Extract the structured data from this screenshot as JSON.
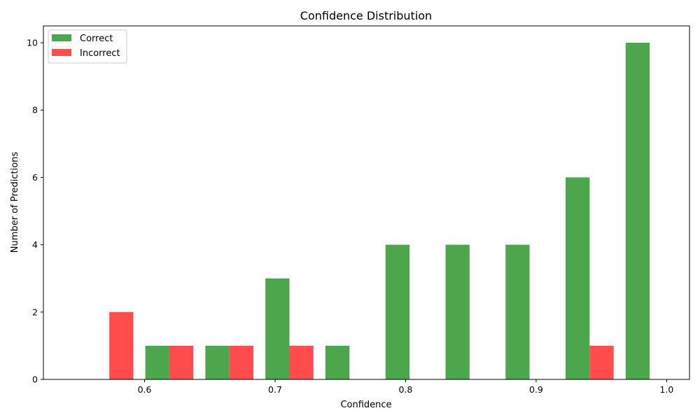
{
  "chart_data": {
    "type": "bar",
    "title": "Confidence Distribution",
    "xlabel": "Confidence",
    "ylabel": "Number of Predictions",
    "xlim": [
      0.5225,
      1.0175
    ],
    "ylim": [
      0,
      10.5
    ],
    "xticks": [
      0.6,
      0.7,
      0.8,
      0.9,
      1.0
    ],
    "xtick_labels": [
      "0.6",
      "0.7",
      "0.8",
      "0.9",
      "1.0"
    ],
    "yticks": [
      0,
      2,
      4,
      6,
      8,
      10
    ],
    "ytick_labels": [
      "0",
      "2",
      "4",
      "6",
      "8",
      "10"
    ],
    "bin_edges": [
      0.55,
      0.596,
      0.642,
      0.688,
      0.734,
      0.78,
      0.826,
      0.872,
      0.918,
      0.964,
      1.01
    ],
    "series": [
      {
        "name": "Correct",
        "color": "#4ca64c",
        "values": [
          0,
          1,
          1,
          3,
          1,
          4,
          4,
          4,
          6,
          10
        ]
      },
      {
        "name": "Incorrect",
        "color": "#ff4c4c",
        "values": [
          2,
          1,
          1,
          1,
          0,
          0,
          0,
          0,
          1,
          0
        ]
      }
    ],
    "grid": false,
    "legend_position": "upper-left"
  }
}
